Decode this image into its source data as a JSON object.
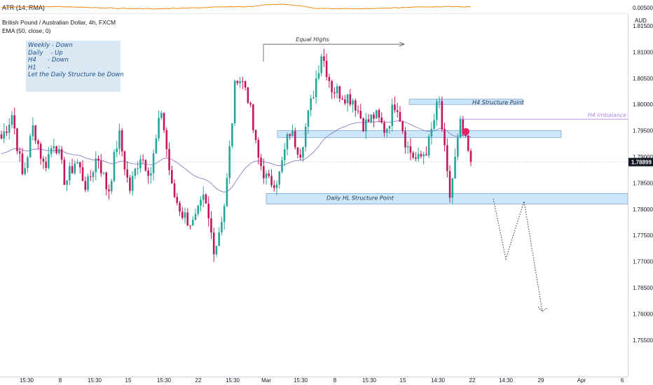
{
  "indicator": {
    "atr_label": "ATR (14, RMA)",
    "atr_value": "0.00500"
  },
  "header": {
    "symbol_title": "British Pound / Australian Dollar, 4h, FXCM",
    "ema_label": "EMA (50, close, 0)"
  },
  "notes": {
    "lines": [
      "Weekly - Down",
      "Daily    - Up",
      "H4      - Down",
      "H1      -",
      "",
      "Let the Daily Structure be Down"
    ]
  },
  "colors": {
    "up": "#26a69a",
    "down": "#c2185b",
    "ema": "#8e7cc3",
    "zone": "#bbdefb",
    "price_badge": "#131722",
    "imbalance": "#b388eb",
    "dot": "#e91e63"
  },
  "chart_data": {
    "type": "line",
    "title": "British Pound / Australian Dollar, 4h, FXCM",
    "currency_label": "AUD",
    "ylim": [
      1.7525,
      1.8125
    ],
    "y_ticks": [
      "1.81500",
      "1.81000",
      "1.80500",
      "1.80000",
      "1.79500",
      "1.79000",
      "1.78500",
      "1.78000",
      "1.77500",
      "1.77000",
      "1.76500",
      "1.76000",
      "1.75500"
    ],
    "x_ticks": [
      "15:30",
      "8",
      "15:30",
      "15",
      "15:30",
      "22",
      "15:30",
      "Mar",
      "15:30",
      "8",
      "15:30",
      "15",
      "14:30",
      "22",
      "14:30",
      "29",
      "Apr",
      "6"
    ],
    "last_price": "1.78899",
    "price_key_points": [
      1.7935,
      1.7982,
      1.786,
      1.796,
      1.788,
      1.7935,
      1.785,
      1.7895,
      1.784,
      1.7905,
      1.783,
      1.7945,
      1.7835,
      1.7905,
      1.787,
      1.799,
      1.7835,
      1.779,
      1.777,
      1.782,
      1.772,
      1.782,
      1.806,
      1.803,
      1.79,
      1.785,
      1.786,
      1.795,
      1.791,
      1.8,
      1.81,
      1.803,
      1.802,
      1.801,
      1.796,
      1.798,
      1.795,
      1.801,
      1.792,
      1.789,
      1.792,
      1.801,
      1.782,
      1.796,
      1.789
    ],
    "annotations": [
      {
        "label": "Equal Highs",
        "type": "arrow-line",
        "price": 1.8115
      },
      {
        "label": "H4 Structure Point",
        "type": "zone",
        "from": 1.8,
        "to": 1.801
      },
      {
        "label": "H4 Imbalance",
        "type": "line",
        "price": 1.7972
      },
      {
        "label": "Daily HL Structure Point",
        "type": "zone",
        "from": 1.781,
        "to": 1.783
      },
      {
        "label": "",
        "type": "zone",
        "from": 1.7937,
        "to": 1.795
      }
    ],
    "projection": [
      1.782,
      1.7705,
      1.7815,
      1.7605
    ]
  }
}
